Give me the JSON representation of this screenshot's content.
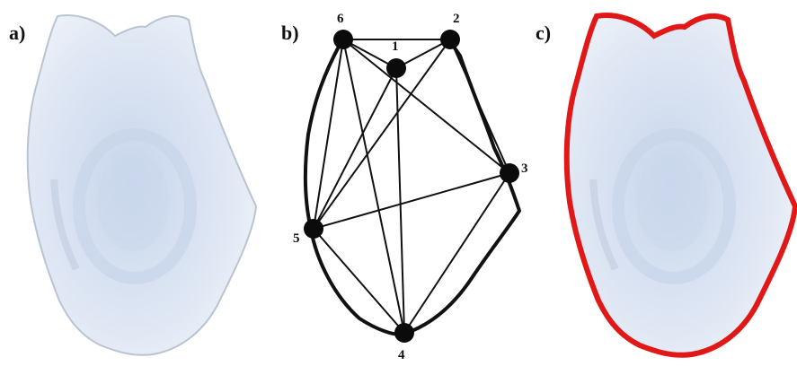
{
  "panels": [
    {
      "id": "a",
      "label": "a)"
    },
    {
      "id": "b",
      "label": "b)"
    },
    {
      "id": "c",
      "label": "c)"
    }
  ],
  "landmarks": [
    {
      "id": 1,
      "label": "1"
    },
    {
      "id": 2,
      "label": "2"
    },
    {
      "id": 3,
      "label": "3"
    },
    {
      "id": 4,
      "label": "4"
    },
    {
      "id": 5,
      "label": "5"
    },
    {
      "id": 6,
      "label": "6"
    }
  ],
  "connections": [
    [
      6,
      2
    ],
    [
      6,
      1
    ],
    [
      1,
      2
    ],
    [
      6,
      5
    ],
    [
      6,
      3
    ],
    [
      6,
      4
    ],
    [
      2,
      3
    ],
    [
      2,
      5
    ],
    [
      1,
      5
    ],
    [
      1,
      4
    ],
    [
      5,
      3
    ],
    [
      5,
      4
    ],
    [
      3,
      4
    ]
  ],
  "colors": {
    "outline_highlight": "#e01818",
    "outline_black": "#111111",
    "scale_fill": "#d8e3f0"
  }
}
